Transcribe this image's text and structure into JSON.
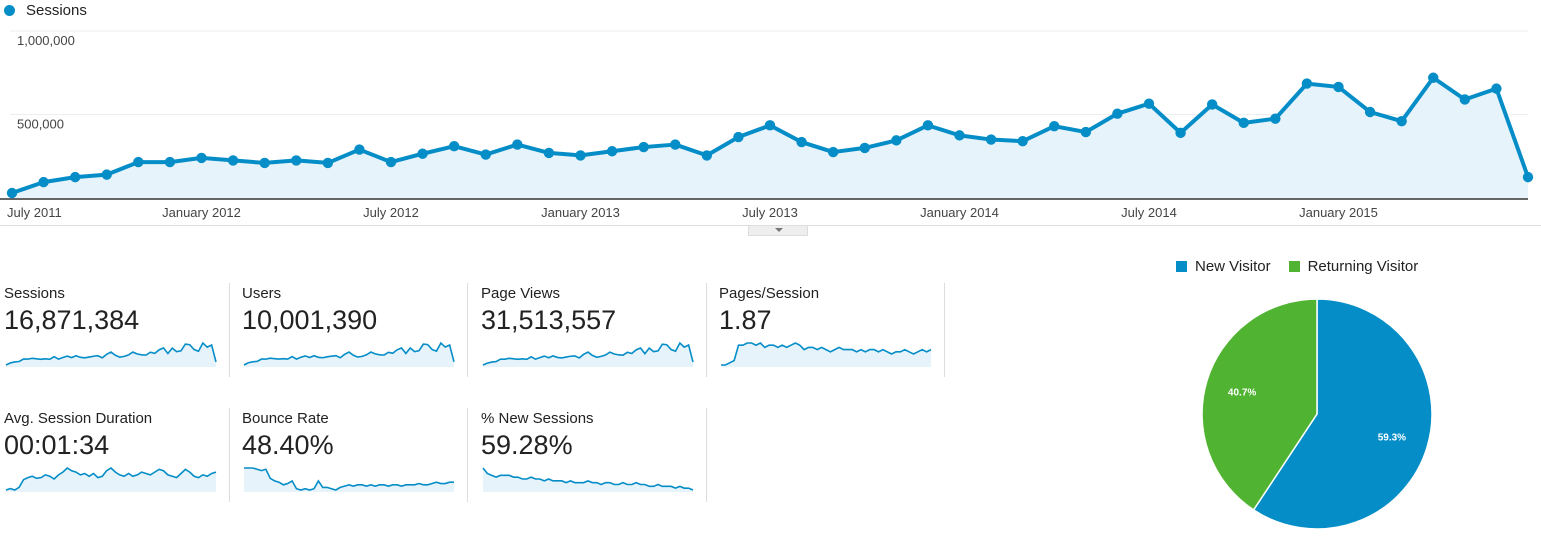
{
  "colors": {
    "series": "#058DC7",
    "area_fill": "#E6F3FA",
    "grid": "#eeeeee",
    "axis": "#333333",
    "new_visitor": "#058DC7",
    "returning_visitor": "#50B432"
  },
  "chart_data": [
    {
      "type": "line",
      "legend": "Sessions",
      "ylim": [
        0,
        1000000
      ],
      "y_ticks": [
        "1,000,000",
        "500,000"
      ],
      "x_tick_labels": [
        "July 2011",
        "January 2012",
        "July 2012",
        "January 2013",
        "July 2013",
        "January 2014",
        "July 2014",
        "January 2015"
      ],
      "series": [
        {
          "name": "Sessions",
          "x": [
            "Jul 2011",
            "Aug 2011",
            "Sep 2011",
            "Oct 2011",
            "Nov 2011",
            "Dec 2011",
            "Jan 2012",
            "Feb 2012",
            "Mar 2012",
            "Apr 2012",
            "May 2012",
            "Jun 2012",
            "Jul 2012",
            "Aug 2012",
            "Sep 2012",
            "Oct 2012",
            "Nov 2012",
            "Dec 2012",
            "Jan 2013",
            "Feb 2013",
            "Mar 2013",
            "Apr 2013",
            "May 2013",
            "Jun 2013",
            "Jul 2013",
            "Aug 2013",
            "Sep 2013",
            "Oct 2013",
            "Nov 2013",
            "Dec 2013",
            "Jan 2014",
            "Feb 2014",
            "Mar 2014",
            "Apr 2014",
            "May 2014",
            "Jun 2014",
            "Jul 2014",
            "Aug 2014",
            "Sep 2014",
            "Oct 2014",
            "Nov 2014",
            "Dec 2014",
            "Jan 2015",
            "Feb 2015",
            "Mar 2015",
            "Apr 2015",
            "May 2015",
            "Jun 2015",
            "Jul 2015"
          ],
          "values": [
            30000,
            95000,
            125000,
            140000,
            215000,
            215000,
            240000,
            225000,
            210000,
            225000,
            210000,
            290000,
            215000,
            265000,
            310000,
            260000,
            320000,
            270000,
            255000,
            280000,
            305000,
            320000,
            255000,
            365000,
            435000,
            335000,
            275000,
            300000,
            345000,
            435000,
            375000,
            350000,
            340000,
            430000,
            395000,
            505000,
            565000,
            390000,
            560000,
            450000,
            475000,
            685000,
            665000,
            515000,
            460000,
            720000,
            590000,
            655000,
            125000
          ]
        }
      ]
    },
    {
      "type": "pie",
      "legend": [
        "New Visitor",
        "Returning Visitor"
      ],
      "slices": [
        {
          "label": "New Visitor",
          "value": 59.3,
          "text": "59.3%"
        },
        {
          "label": "Returning Visitor",
          "value": 40.7,
          "text": "40.7%"
        }
      ]
    }
  ],
  "metrics": [
    {
      "label": "Sessions",
      "value": "16,871,384",
      "spark": [
        30,
        95,
        125,
        140,
        215,
        215,
        240,
        225,
        210,
        225,
        210,
        290,
        215,
        265,
        310,
        260,
        320,
        270,
        255,
        280,
        305,
        320,
        255,
        365,
        435,
        335,
        275,
        300,
        345,
        435,
        375,
        350,
        340,
        430,
        395,
        505,
        565,
        390,
        560,
        450,
        475,
        685,
        665,
        515,
        460,
        720,
        590,
        655,
        125
      ]
    },
    {
      "label": "Users",
      "value": "10,001,390",
      "spark": [
        20,
        70,
        90,
        100,
        150,
        150,
        170,
        160,
        150,
        160,
        150,
        205,
        150,
        190,
        220,
        185,
        225,
        190,
        180,
        200,
        215,
        225,
        180,
        255,
        305,
        235,
        195,
        210,
        245,
        305,
        265,
        245,
        240,
        300,
        280,
        355,
        395,
        275,
        395,
        315,
        335,
        480,
        470,
        360,
        325,
        505,
        415,
        460,
        90
      ]
    },
    {
      "label": "Page Views",
      "value": "31,513,557",
      "spark": [
        60,
        170,
        230,
        260,
        400,
        400,
        450,
        420,
        390,
        420,
        390,
        540,
        400,
        490,
        580,
        480,
        590,
        500,
        470,
        520,
        570,
        590,
        470,
        680,
        810,
        620,
        510,
        560,
        640,
        810,
        700,
        650,
        630,
        800,
        730,
        940,
        1050,
        720,
        1040,
        840,
        880,
        1270,
        1240,
        960,
        860,
        1340,
        1100,
        1220,
        230
      ]
    },
    {
      "label": "Pages/Session",
      "value": "1.87",
      "spark": [
        1.5,
        1.5,
        1.55,
        1.6,
        1.95,
        1.95,
        2.0,
        2.0,
        1.95,
        2.0,
        1.9,
        1.95,
        1.95,
        1.9,
        1.95,
        1.9,
        1.95,
        2.0,
        1.95,
        1.85,
        1.9,
        1.9,
        1.85,
        1.9,
        1.85,
        1.8,
        1.85,
        1.9,
        1.85,
        1.85,
        1.85,
        1.8,
        1.85,
        1.8,
        1.85,
        1.85,
        1.8,
        1.85,
        1.8,
        1.75,
        1.8,
        1.8,
        1.85,
        1.8,
        1.75,
        1.8,
        1.85,
        1.8,
        1.85
      ]
    },
    {
      "label": "Avg. Session Duration",
      "value": "00:01:34",
      "spark": [
        70,
        72,
        70,
        74,
        85,
        88,
        90,
        87,
        88,
        92,
        90,
        86,
        92,
        96,
        102,
        98,
        96,
        92,
        94,
        90,
        94,
        88,
        90,
        98,
        102,
        96,
        92,
        90,
        94,
        90,
        92,
        96,
        94,
        92,
        96,
        100,
        98,
        92,
        90,
        88,
        94,
        100,
        96,
        90,
        88,
        92,
        90,
        94,
        96
      ]
    },
    {
      "label": "Bounce Rate",
      "value": "48.40%",
      "spark": [
        60,
        60,
        60,
        59,
        58,
        59,
        52,
        50,
        49,
        47,
        48,
        50,
        44,
        43,
        44,
        43,
        44,
        50,
        45,
        45,
        44,
        43,
        45,
        46,
        47,
        46,
        47,
        47,
        46,
        47,
        46,
        47,
        47,
        46,
        47,
        47,
        46,
        47,
        47,
        47,
        48,
        47,
        47,
        48,
        49,
        48,
        48,
        49,
        49
      ]
    },
    {
      "label": "% New Sessions",
      "value": "59.28%",
      "spark": [
        70,
        67,
        66,
        65,
        66,
        66,
        66,
        65,
        65,
        64,
        64,
        65,
        64,
        64,
        63,
        64,
        63,
        63,
        63,
        62,
        63,
        62,
        62,
        62,
        63,
        62,
        62,
        61,
        62,
        62,
        61,
        61,
        62,
        61,
        61,
        62,
        61,
        61,
        60,
        60,
        61,
        60,
        60,
        60,
        59,
        60,
        59,
        59,
        58
      ]
    }
  ]
}
